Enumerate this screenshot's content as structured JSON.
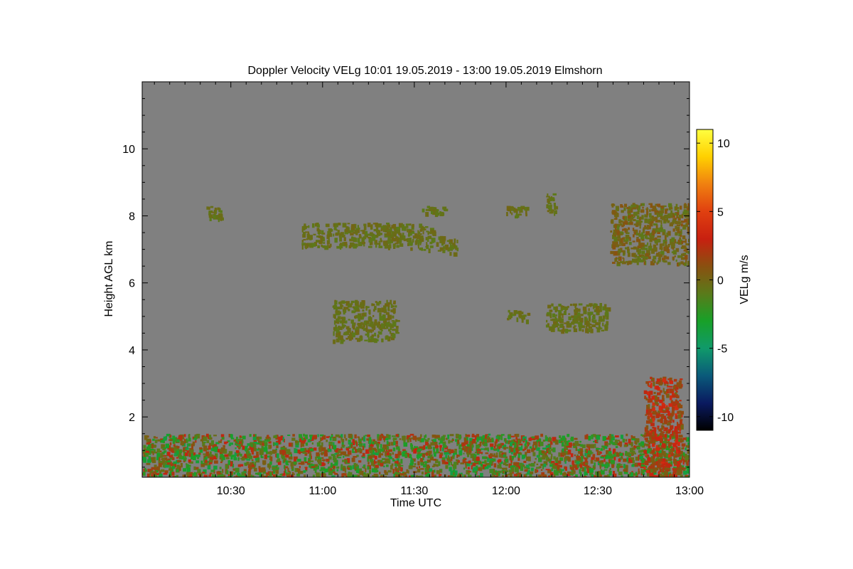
{
  "chart_data": {
    "type": "heatmap",
    "title": "Doppler Velocity VELg   10:01 19.05.2019 - 13:00 19.05.2019 Elmshorn",
    "xlabel": "Time UTC",
    "ylabel": "Height AGL km",
    "xlim": [
      "10:01",
      "13:00"
    ],
    "ylim": [
      0.2,
      12.0
    ],
    "x_ticks": [
      "10:30",
      "11:00",
      "11:30",
      "12:00",
      "12:30",
      "13:00"
    ],
    "y_ticks": [
      2,
      4,
      6,
      8,
      10
    ],
    "background_color": "#808080",
    "colorbar": {
      "label": "VELg m/s",
      "range": [
        -11,
        11
      ],
      "ticks": [
        10,
        5,
        0,
        -5,
        -10
      ],
      "colors": [
        "#000000",
        "#0a1a60",
        "#0a5a7a",
        "#109a6a",
        "#18a028",
        "#5a7a1a",
        "#8a5010",
        "#c82010",
        "#e04010",
        "#f08010",
        "#ffd000",
        "#ffff40"
      ]
    },
    "regions": [
      {
        "name": "boundary-layer",
        "start": "10:01",
        "end": "13:00",
        "base_km": 0.2,
        "top_km": 1.5,
        "velocity_range_ms": [
          -4,
          3
        ]
      },
      {
        "name": "convective-plume",
        "start": "12:45",
        "end": "12:57",
        "base_km": 0.2,
        "top_km": 3.2,
        "velocity_range_ms": [
          0,
          4
        ]
      },
      {
        "name": "cloud-8km-a",
        "start": "10:22",
        "end": "10:27",
        "base_km": 7.9,
        "top_km": 8.3,
        "velocity_range_ms": [
          -1,
          0
        ]
      },
      {
        "name": "cloud-7km-a",
        "start": "10:53",
        "end": "11:22",
        "base_km": 7.1,
        "top_km": 7.8,
        "velocity_range_ms": [
          -1,
          0
        ]
      },
      {
        "name": "cloud-7km-b",
        "start": "11:21",
        "end": "11:36",
        "base_km": 7.0,
        "top_km": 7.8,
        "velocity_range_ms": [
          -1,
          0
        ]
      },
      {
        "name": "cloud-7km-c",
        "start": "11:37",
        "end": "11:44",
        "base_km": 6.9,
        "top_km": 7.4,
        "velocity_range_ms": [
          -1,
          0
        ]
      },
      {
        "name": "cloud-8km-b",
        "start": "11:32",
        "end": "11:41",
        "base_km": 8.1,
        "top_km": 8.3,
        "velocity_range_ms": [
          -1,
          0
        ]
      },
      {
        "name": "cloud-5km-a",
        "start": "11:03",
        "end": "11:24",
        "base_km": 4.3,
        "top_km": 5.5,
        "velocity_range_ms": [
          -1,
          0
        ]
      },
      {
        "name": "cloud-5km-b",
        "start": "12:00",
        "end": "12:07",
        "base_km": 4.9,
        "top_km": 5.2,
        "velocity_range_ms": [
          -1,
          0
        ]
      },
      {
        "name": "cloud-5km-c",
        "start": "12:13",
        "end": "12:33",
        "base_km": 4.6,
        "top_km": 5.4,
        "velocity_range_ms": [
          -1,
          0
        ]
      },
      {
        "name": "cloud-8km-c",
        "start": "12:00",
        "end": "12:07",
        "base_km": 8.0,
        "top_km": 8.3,
        "velocity_range_ms": [
          -1,
          0
        ]
      },
      {
        "name": "cloud-8km-d",
        "start": "12:13",
        "end": "12:16",
        "base_km": 8.1,
        "top_km": 8.7,
        "velocity_range_ms": [
          -1,
          0
        ]
      },
      {
        "name": "cloud-7km-d",
        "start": "12:34",
        "end": "13:00",
        "base_km": 6.6,
        "top_km": 8.4,
        "velocity_range_ms": [
          -1,
          1
        ]
      }
    ]
  }
}
